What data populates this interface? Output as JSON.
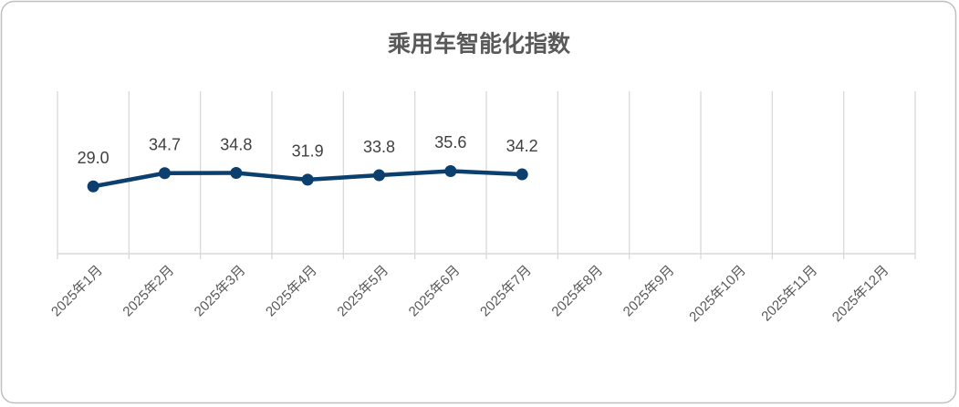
{
  "chart_data": {
    "type": "line",
    "title": "乘用车智能化指数",
    "categories": [
      "2025年1月",
      "2025年2月",
      "2025年3月",
      "2025年4月",
      "2025年5月",
      "2025年6月",
      "2025年7月",
      "2025年8月",
      "2025年9月",
      "2025年10月",
      "2025年11月",
      "2025年12月"
    ],
    "values": [
      29.0,
      34.7,
      34.8,
      31.9,
      33.8,
      35.6,
      34.2,
      null,
      null,
      null,
      null,
      null
    ],
    "value_labels": [
      "29.0",
      "34.7",
      "34.8",
      "31.9",
      "33.8",
      "35.6",
      "34.2",
      null,
      null,
      null,
      null,
      null
    ],
    "color": "#0b3f6d",
    "ylim": [
      0,
      70
    ],
    "grid": true
  }
}
